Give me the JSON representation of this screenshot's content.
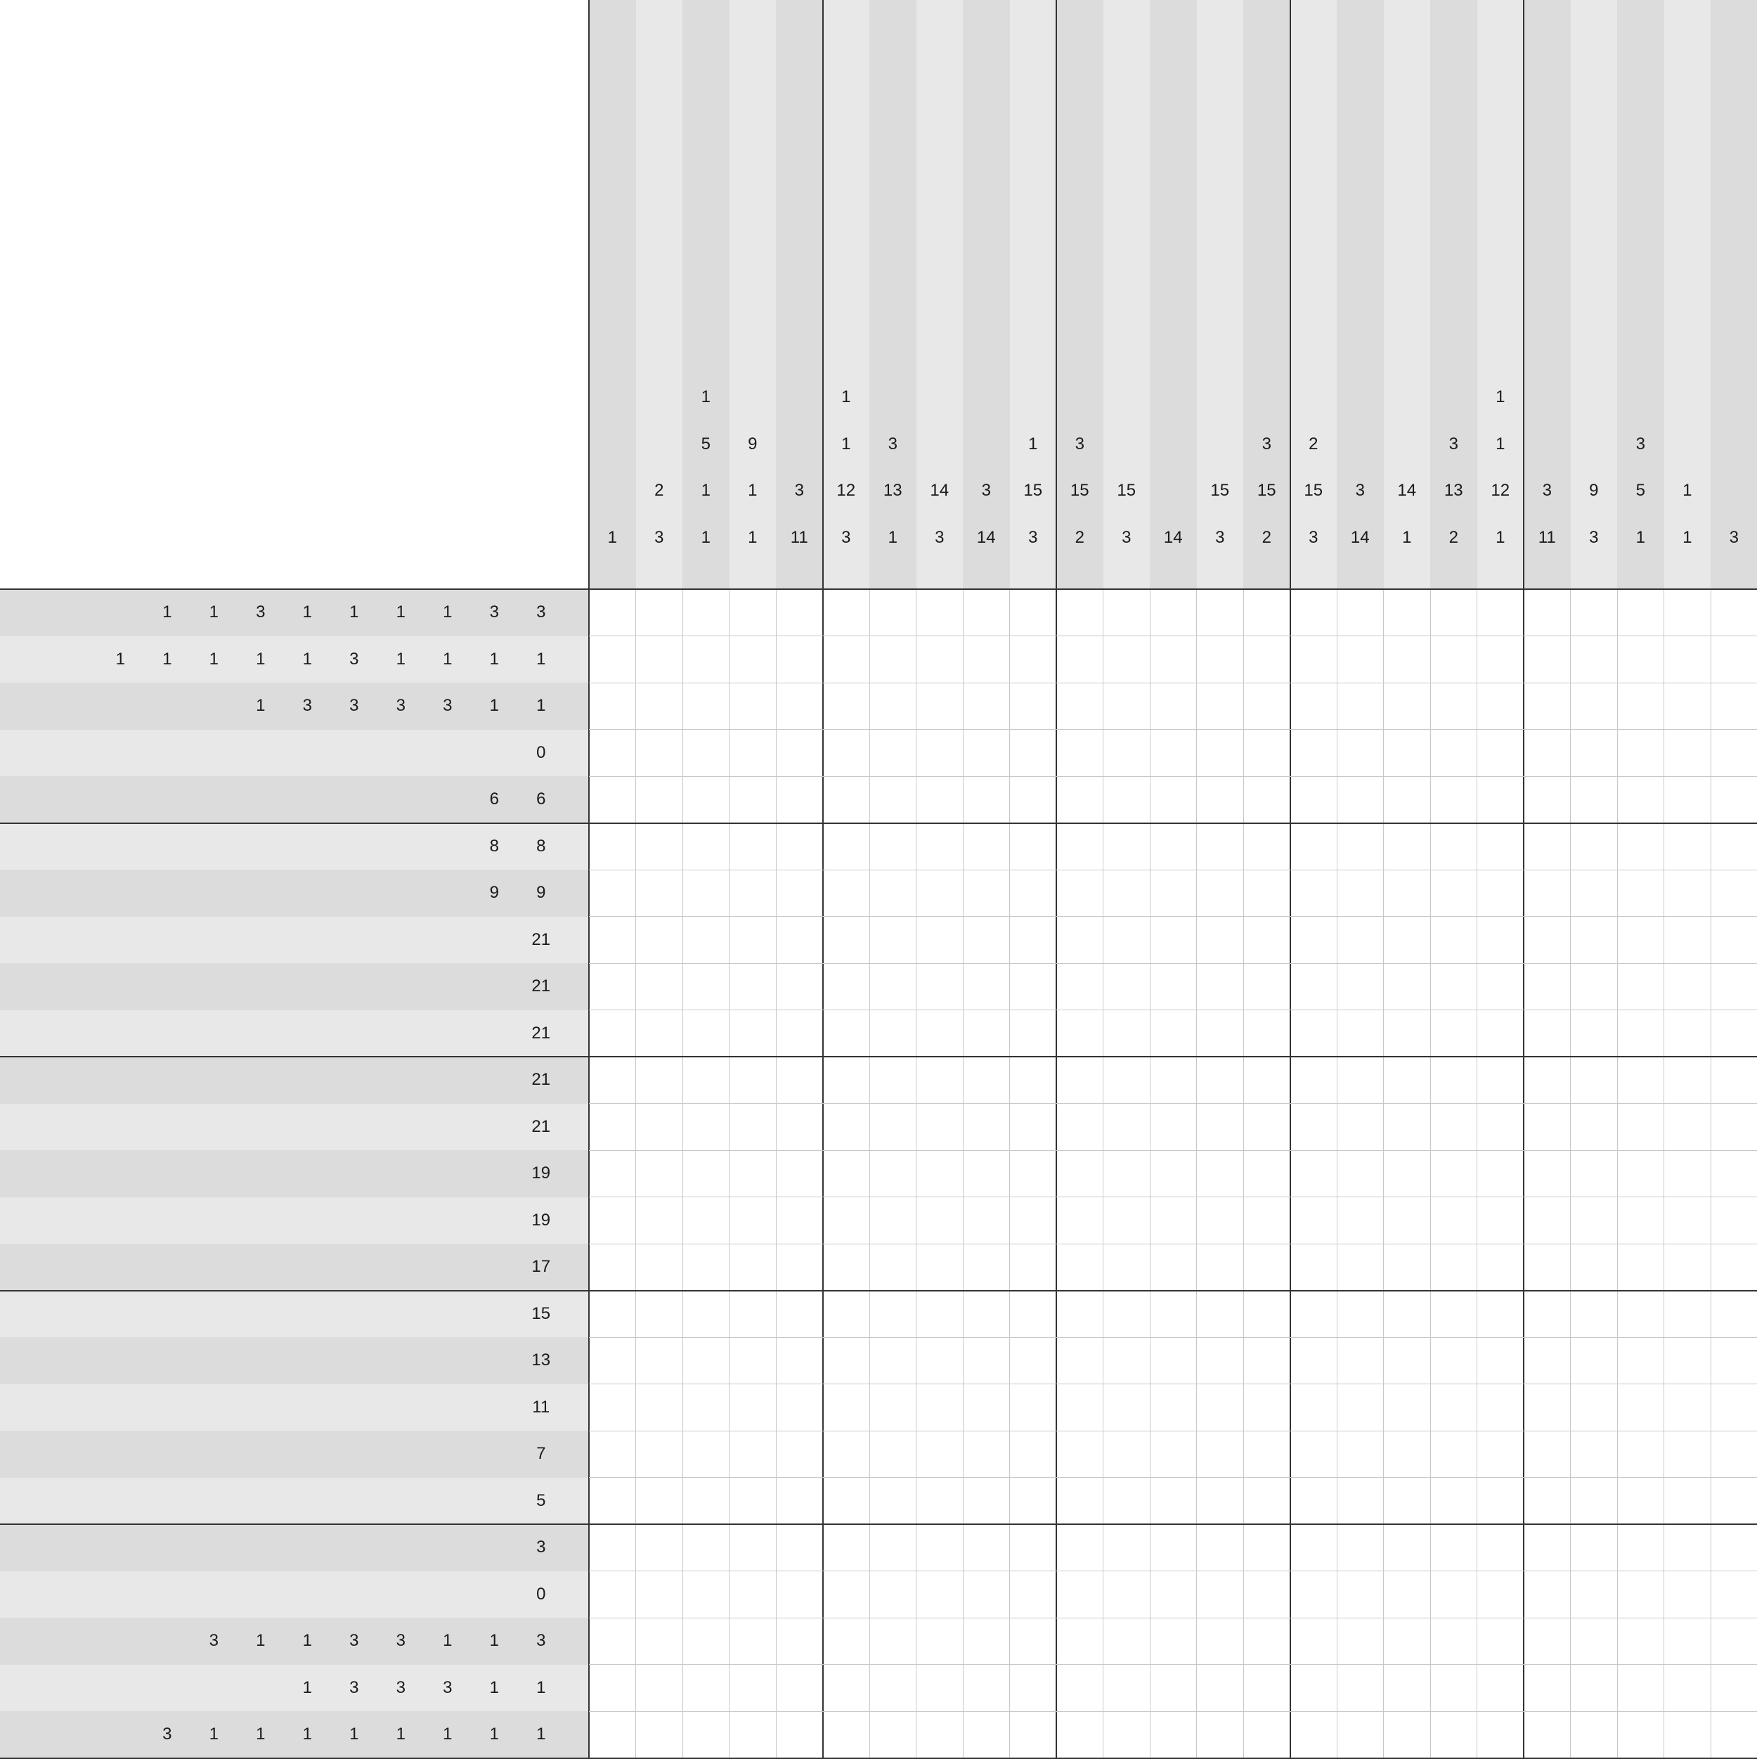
{
  "puzzle": {
    "type": "nonogram",
    "rows": 25,
    "cols": 25,
    "row_clues": [
      [
        1,
        1,
        3,
        1,
        1,
        1,
        1,
        3,
        3
      ],
      [
        1,
        1,
        1,
        1,
        1,
        3,
        1,
        1,
        1,
        1
      ],
      [
        1,
        3,
        3,
        3,
        3,
        1,
        1
      ],
      [
        0
      ],
      [
        6,
        6
      ],
      [
        8,
        8
      ],
      [
        9,
        9
      ],
      [
        21
      ],
      [
        21
      ],
      [
        21
      ],
      [
        21
      ],
      [
        21
      ],
      [
        19
      ],
      [
        19
      ],
      [
        17
      ],
      [
        15
      ],
      [
        13
      ],
      [
        11
      ],
      [
        7
      ],
      [
        5
      ],
      [
        3
      ],
      [
        0
      ],
      [
        3,
        1,
        1,
        3,
        3,
        1,
        1,
        3
      ],
      [
        1,
        3,
        3,
        3,
        1,
        1
      ],
      [
        3,
        1,
        1,
        1,
        1,
        1,
        1,
        1,
        1
      ]
    ],
    "col_clues": [
      [
        1
      ],
      [
        2,
        3
      ],
      [
        1,
        5,
        1,
        1
      ],
      [
        9,
        1,
        1
      ],
      [
        3,
        11
      ],
      [
        1,
        1,
        12,
        3
      ],
      [
        3,
        13,
        1
      ],
      [
        14,
        3
      ],
      [
        3,
        14
      ],
      [
        1,
        15,
        3
      ],
      [
        3,
        15,
        2
      ],
      [
        15,
        3
      ],
      [
        14
      ],
      [
        15,
        3
      ],
      [
        3,
        15,
        2
      ],
      [
        2,
        15,
        3
      ],
      [
        3,
        14
      ],
      [
        14,
        1
      ],
      [
        3,
        13,
        2
      ],
      [
        1,
        1,
        12,
        1
      ],
      [
        3,
        11
      ],
      [
        9,
        3
      ],
      [
        3,
        5,
        1
      ],
      [
        1,
        1
      ],
      [
        3
      ]
    ],
    "filled_cells": []
  },
  "colors": {
    "clue_band_dark": "#dcdcdc",
    "clue_band_light": "#e8e8e8",
    "grid_thin_line": "#c8c8c8",
    "grid_block_line": "#333333",
    "clue_text": "#1a1a1a",
    "cell_background": "#ffffff"
  }
}
